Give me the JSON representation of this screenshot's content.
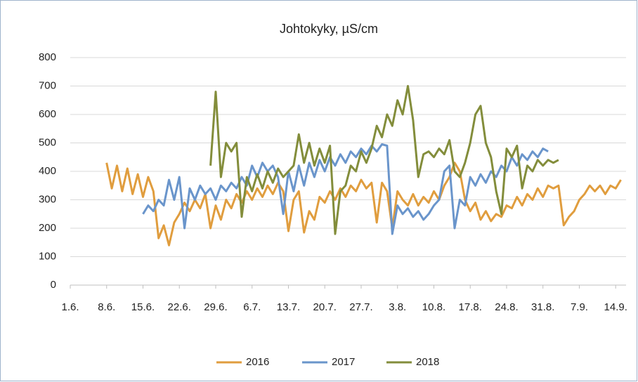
{
  "chart_data": {
    "type": "line",
    "title": "Johtokyky, µS/cm",
    "xlim": [
      0,
      107
    ],
    "xticks": [
      {
        "value": 0,
        "label": "1.6."
      },
      {
        "value": 7,
        "label": "8.6."
      },
      {
        "value": 14,
        "label": "15.6."
      },
      {
        "value": 21,
        "label": "22.6."
      },
      {
        "value": 28,
        "label": "29.6."
      },
      {
        "value": 35,
        "label": "6.7."
      },
      {
        "value": 42,
        "label": "13.7."
      },
      {
        "value": 49,
        "label": "20.7."
      },
      {
        "value": 56,
        "label": "27.7."
      },
      {
        "value": 63,
        "label": "3.8."
      },
      {
        "value": 70,
        "label": "10.8."
      },
      {
        "value": 77,
        "label": "17.8."
      },
      {
        "value": 84,
        "label": "24.8."
      },
      {
        "value": 91,
        "label": "31.8."
      },
      {
        "value": 98,
        "label": "7.9."
      },
      {
        "value": 105,
        "label": "14.9."
      }
    ],
    "ylim": [
      0,
      800
    ],
    "yticks": [
      0,
      100,
      200,
      300,
      400,
      500,
      600,
      700,
      800
    ],
    "grid": true,
    "legend": "bottom",
    "series": [
      {
        "name": "2016",
        "color": "#e09d3e",
        "x": [
          7,
          8,
          9,
          10,
          11,
          12,
          13,
          14,
          15,
          16,
          17,
          18,
          19,
          20,
          21,
          22,
          23,
          24,
          25,
          26,
          27,
          28,
          29,
          30,
          31,
          32,
          33,
          34,
          35,
          36,
          37,
          38,
          39,
          40,
          41,
          42,
          43,
          44,
          45,
          46,
          47,
          48,
          49,
          50,
          51,
          52,
          53,
          54,
          55,
          56,
          57,
          58,
          59,
          60,
          61,
          62,
          63,
          64,
          65,
          66,
          67,
          68,
          69,
          70,
          71,
          72,
          73,
          74,
          75,
          76,
          77,
          78,
          79,
          80,
          81,
          82,
          83,
          84,
          85,
          86,
          87,
          88,
          89,
          90,
          91,
          92,
          93,
          94,
          95,
          96,
          97,
          98,
          99,
          100,
          101,
          102,
          103,
          104,
          105,
          106
        ],
        "values": [
          430,
          340,
          420,
          330,
          410,
          320,
          390,
          310,
          380,
          330,
          165,
          210,
          140,
          220,
          250,
          290,
          260,
          300,
          270,
          320,
          200,
          280,
          230,
          300,
          270,
          320,
          290,
          330,
          300,
          340,
          310,
          350,
          320,
          360,
          330,
          190,
          300,
          330,
          185,
          260,
          230,
          310,
          290,
          330,
          300,
          340,
          310,
          350,
          330,
          370,
          340,
          360,
          220,
          360,
          330,
          200,
          330,
          300,
          280,
          320,
          280,
          310,
          290,
          330,
          300,
          350,
          380,
          430,
          400,
          300,
          260,
          290,
          230,
          260,
          225,
          250,
          240,
          280,
          270,
          310,
          280,
          320,
          300,
          340,
          310,
          350,
          340,
          350,
          210,
          240,
          260,
          300,
          320,
          350,
          330,
          350,
          320,
          350,
          340,
          370
        ]
      },
      {
        "name": "2017",
        "color": "#6a95cb",
        "x": [
          14,
          15,
          16,
          17,
          18,
          19,
          20,
          21,
          22,
          23,
          24,
          25,
          26,
          27,
          28,
          29,
          30,
          31,
          32,
          33,
          34,
          35,
          36,
          37,
          38,
          39,
          40,
          41,
          42,
          43,
          44,
          45,
          46,
          47,
          48,
          49,
          50,
          51,
          52,
          53,
          54,
          55,
          56,
          57,
          58,
          59,
          60,
          61,
          62,
          63,
          64,
          65,
          66,
          67,
          68,
          69,
          70,
          71,
          72,
          73,
          74,
          75,
          76,
          77,
          78,
          79,
          80,
          81,
          82,
          83,
          84,
          85,
          86,
          87,
          88,
          89,
          90,
          91,
          92
        ],
        "values": [
          250,
          280,
          260,
          300,
          280,
          370,
          300,
          380,
          200,
          340,
          300,
          350,
          320,
          340,
          300,
          350,
          330,
          360,
          340,
          380,
          350,
          420,
          380,
          430,
          400,
          420,
          380,
          250,
          400,
          330,
          420,
          350,
          430,
          380,
          440,
          400,
          450,
          420,
          460,
          430,
          470,
          450,
          480,
          460,
          490,
          470,
          495,
          490,
          180,
          280,
          250,
          270,
          240,
          260,
          230,
          250,
          280,
          300,
          400,
          420,
          200,
          300,
          280,
          380,
          350,
          390,
          360,
          400,
          380,
          420,
          400,
          450,
          420,
          460,
          440,
          470,
          450,
          480,
          470
        ]
      },
      {
        "name": "2018",
        "color": "#838d3b",
        "x": [
          27,
          28,
          29,
          30,
          31,
          32,
          33,
          34,
          35,
          36,
          37,
          38,
          39,
          40,
          41,
          42,
          43,
          44,
          45,
          46,
          47,
          48,
          49,
          50,
          51,
          52,
          53,
          54,
          55,
          56,
          57,
          58,
          59,
          60,
          61,
          62,
          63,
          64,
          65,
          66,
          67,
          68,
          69,
          70,
          71,
          72,
          73,
          74,
          75,
          76,
          77,
          78,
          79,
          80,
          81,
          82,
          83,
          84,
          85,
          86,
          87,
          88,
          89,
          90,
          91,
          92,
          93,
          94
        ],
        "values": [
          420,
          680,
          380,
          500,
          470,
          500,
          240,
          380,
          330,
          390,
          340,
          400,
          360,
          410,
          380,
          400,
          420,
          530,
          430,
          500,
          420,
          480,
          430,
          490,
          180,
          330,
          350,
          420,
          400,
          470,
          430,
          480,
          560,
          520,
          600,
          560,
          650,
          600,
          700,
          580,
          380,
          460,
          470,
          450,
          480,
          460,
          510,
          400,
          380,
          430,
          500,
          600,
          630,
          500,
          450,
          330,
          250,
          480,
          450,
          490,
          340,
          420,
          400,
          440,
          420,
          440,
          430,
          440
        ]
      }
    ]
  }
}
